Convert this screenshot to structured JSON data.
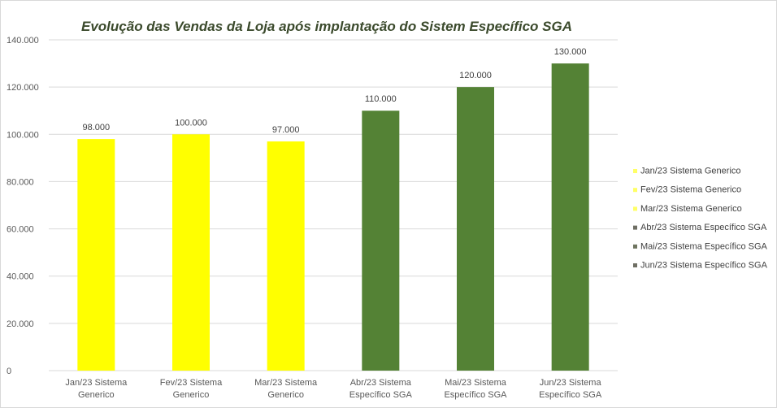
{
  "chart_data": {
    "type": "bar",
    "title": "Evolução das Vendas da Loja após implantação do Sistem Específico SGA",
    "categories": [
      [
        "Jan/23 Sistema",
        "Generico"
      ],
      [
        "Fev/23 Sistema",
        "Generico"
      ],
      [
        "Mar/23 Sistema",
        "Generico"
      ],
      [
        "Abr/23 Sistema",
        "Específico SGA"
      ],
      [
        "Mai/23 Sistema",
        "Específico SGA"
      ],
      [
        "Jun/23 Sistema",
        "Específico SGA"
      ]
    ],
    "values": [
      98000,
      100000,
      97000,
      110000,
      120000,
      130000
    ],
    "data_labels": [
      "98.000",
      "100.000",
      "97.000",
      "110.000",
      "120.000",
      "130.000"
    ],
    "bar_colors": [
      "#ffff00",
      "#ffff00",
      "#ffff00",
      "#548235",
      "#548235",
      "#548235"
    ],
    "ylim": [
      0,
      140000
    ],
    "yticks": [
      0,
      20000,
      40000,
      60000,
      80000,
      100000,
      120000,
      140000
    ],
    "ytick_labels": [
      "0",
      "20.000",
      "40.000",
      "60.000",
      "80.000",
      "100.000",
      "120.000",
      "140.000"
    ],
    "grid": true,
    "legend_position": "right",
    "legend": [
      {
        "label": "Jan/23 Sistema  Generico",
        "color": "#ffff66"
      },
      {
        "label": "Fev/23 Sistema  Generico",
        "color": "#ffff66"
      },
      {
        "label": "Mar/23 Sistema  Generico",
        "color": "#ffff66"
      },
      {
        "label": "Abr/23 Sistema Específico SGA",
        "color": "#6f6f64"
      },
      {
        "label": "Mai/23 Sistema Específico SGA",
        "color": "#6f7560"
      },
      {
        "label": "Jun/23 Sistema Específico SGA",
        "color": "#6f6f64"
      }
    ],
    "xlabel": "",
    "ylabel": ""
  }
}
